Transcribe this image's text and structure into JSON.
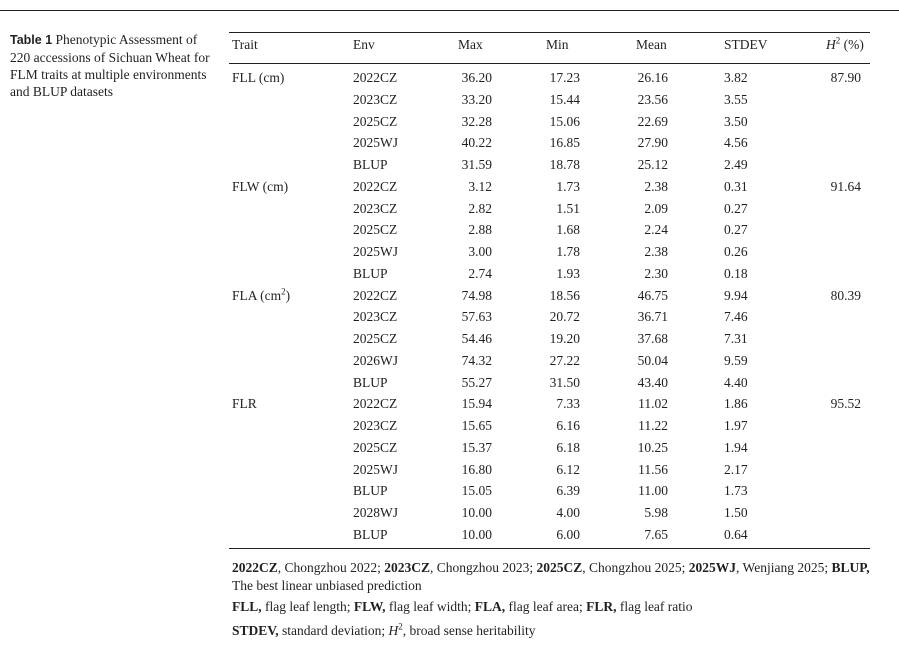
{
  "caption": {
    "label": "Table 1",
    "text": "Phenotypic Assessment of 220 accessions of Sichuan Wheat for FLM traits at multiple environments and BLUP datasets"
  },
  "columns": {
    "trait": "Trait",
    "env": "Env",
    "max": "Max",
    "min": "Min",
    "mean": "Mean",
    "stdev": "STDEV",
    "h2_letter": "H",
    "h2_sup": "2",
    "h2_unit": " (%)"
  },
  "traits": [
    {
      "name": "FLL (cm)",
      "h2": "87.90"
    },
    {
      "name": "FLW (cm)",
      "h2": "91.64"
    },
    {
      "name": "FLA (cm",
      "sup": "2",
      "name_end": ")",
      "h2": "80.39"
    },
    {
      "name": "FLR",
      "h2": "95.52"
    }
  ],
  "rows": [
    {
      "env": "2022CZ",
      "max": "36.20",
      "min": "17.23",
      "mean": "26.16",
      "stdev": "3.82"
    },
    {
      "env": "2023CZ",
      "max": "33.20",
      "min": "15.44",
      "mean": "23.56",
      "stdev": "3.55"
    },
    {
      "env": "2025CZ",
      "max": "32.28",
      "min": "15.06",
      "mean": "22.69",
      "stdev": "3.50"
    },
    {
      "env": "2025WJ",
      "max": "40.22",
      "min": "16.85",
      "mean": "27.90",
      "stdev": "4.56"
    },
    {
      "env": "BLUP",
      "max": "31.59",
      "min": "18.78",
      "mean": "25.12",
      "stdev": "2.49"
    },
    {
      "env": "2022CZ",
      "max": "3.12",
      "min": "1.73",
      "mean": "2.38",
      "stdev": "0.31"
    },
    {
      "env": "2023CZ",
      "max": "2.82",
      "min": "1.51",
      "mean": "2.09",
      "stdev": "0.27"
    },
    {
      "env": "2025CZ",
      "max": "2.88",
      "min": "1.68",
      "mean": "2.24",
      "stdev": "0.27"
    },
    {
      "env": "2025WJ",
      "max": "3.00",
      "min": "1.78",
      "mean": "2.38",
      "stdev": "0.26"
    },
    {
      "env": "BLUP",
      "max": "2.74",
      "min": "1.93",
      "mean": "2.30",
      "stdev": "0.18"
    },
    {
      "env": "2022CZ",
      "max": "74.98",
      "min": "18.56",
      "mean": "46.75",
      "stdev": "9.94"
    },
    {
      "env": "2023CZ",
      "max": "57.63",
      "min": "20.72",
      "mean": "36.71",
      "stdev": "7.46"
    },
    {
      "env": "2025CZ",
      "max": "54.46",
      "min": "19.20",
      "mean": "37.68",
      "stdev": "7.31"
    },
    {
      "env": "2026WJ",
      "max": "74.32",
      "min": "27.22",
      "mean": "50.04",
      "stdev": "9.59"
    },
    {
      "env": "BLUP",
      "max": "55.27",
      "min": "31.50",
      "mean": "43.40",
      "stdev": "4.40"
    },
    {
      "env": "2022CZ",
      "max": "15.94",
      "min": "7.33",
      "mean": "11.02",
      "stdev": "1.86"
    },
    {
      "env": "2023CZ",
      "max": "15.65",
      "min": "6.16",
      "mean": "11.22",
      "stdev": "1.97"
    },
    {
      "env": "2025CZ",
      "max": "15.37",
      "min": "6.18",
      "mean": "10.25",
      "stdev": "1.94"
    },
    {
      "env": "2025WJ",
      "max": "16.80",
      "min": "6.12",
      "mean": "11.56",
      "stdev": "2.17"
    },
    {
      "env": "BLUP",
      "max": "15.05",
      "min": "6.39",
      "mean": "11.00",
      "stdev": "1.73"
    },
    {
      "env": "2028WJ",
      "max": "10.00",
      "min": "4.00",
      "mean": "5.98",
      "stdev": "1.50"
    },
    {
      "env": "BLUP",
      "max": "10.00",
      "min": "6.00",
      "mean": "7.65",
      "stdev": "0.64"
    }
  ],
  "footnotes": {
    "env_abbrevs": [
      {
        "term": "2022CZ",
        "def": ", Chongzhou 2022; "
      },
      {
        "term": "2023CZ",
        "def": ", Chongzhou 2023; "
      },
      {
        "term": "2025CZ",
        "def": ", Chongzhou 2025; "
      },
      {
        "term": "2025WJ",
        "def": ", Wenjiang 2025; "
      },
      {
        "term": "BLUP,",
        "def": " The best linear unbiased prediction"
      }
    ],
    "trait_abbrevs": [
      {
        "term": "FLL,",
        "def": " flag leaf length; "
      },
      {
        "term": "FLW,",
        "def": " flag leaf width; "
      },
      {
        "term": "FLA,",
        "def": " flag leaf area; "
      },
      {
        "term": "FLR,",
        "def": " flag leaf ratio"
      }
    ],
    "stat_abbrevs": {
      "term": "STDEV,",
      "def": " standard deviation; ",
      "h_letter": "H",
      "h_sup": "2",
      "h_def": ", broad sense heritability"
    }
  }
}
